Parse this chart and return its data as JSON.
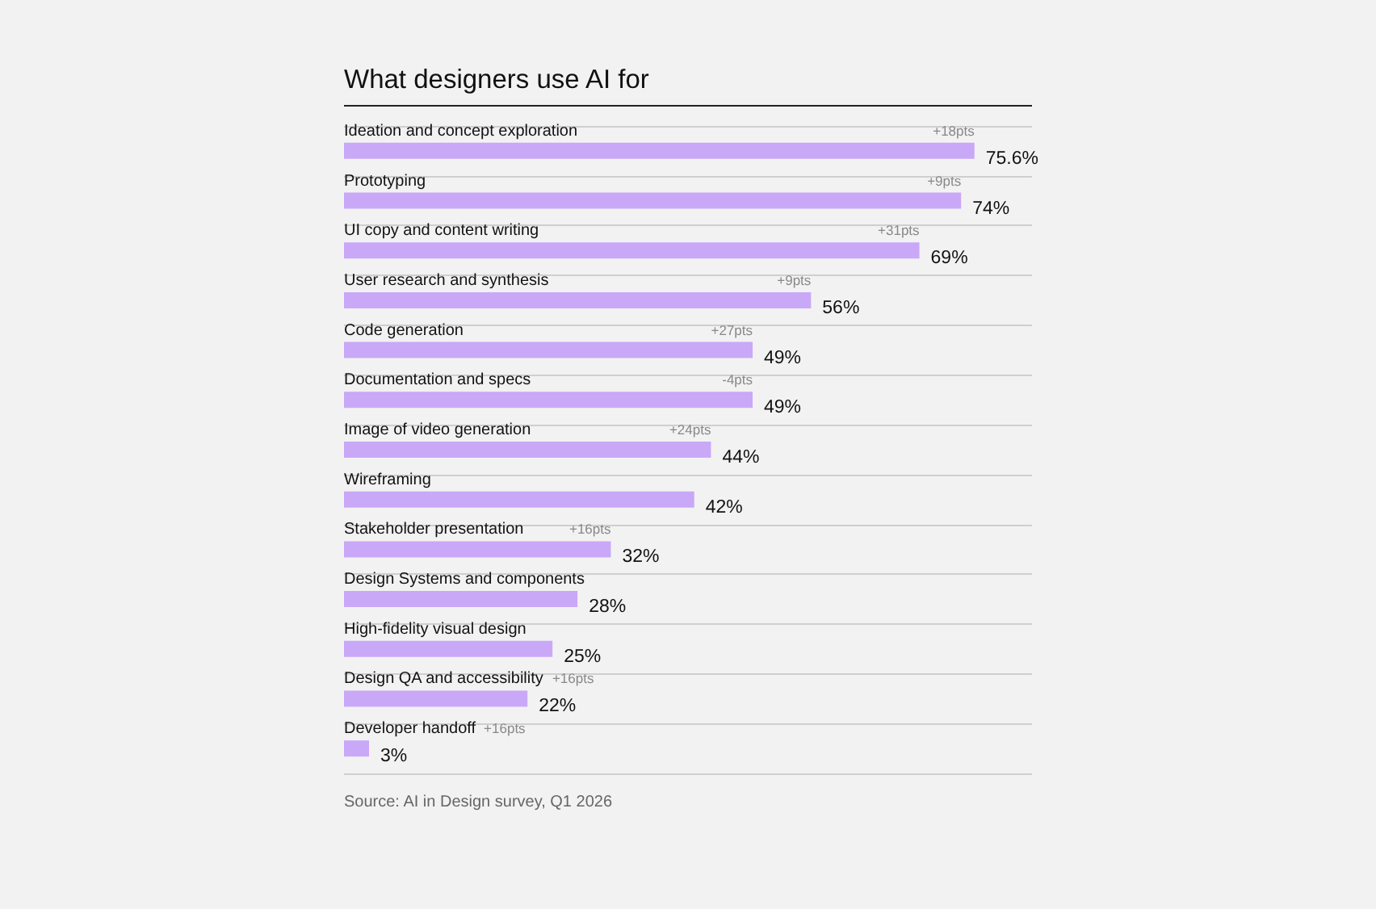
{
  "chart_data": {
    "type": "bar",
    "orientation": "horizontal",
    "title": "What designers use AI for",
    "categories": [
      "Ideation and concept exploration",
      "Prototyping",
      "UI copy and content writing",
      "User research and synthesis",
      "Code generation",
      "Documentation and specs",
      "Image of video generation",
      "Wireframing",
      "Stakeholder presentation",
      "Design Systems and components",
      "High-fidelity visual design",
      "Design QA and accessibility",
      "Developer handoff"
    ],
    "values": [
      75.6,
      74,
      69,
      56,
      49,
      49,
      44,
      42,
      32,
      28,
      25,
      22,
      3
    ],
    "value_labels": [
      "75.6%",
      "74%",
      "69%",
      "56%",
      "49%",
      "49%",
      "44%",
      "42%",
      "32%",
      "28%",
      "25%",
      "22%",
      "3%"
    ],
    "color": "#c9a8f8",
    "xlim": [
      0,
      82.5
    ],
    "tick_labels": "y",
    "grid": "y",
    "annotations": [
      {
        "text": "+18pts",
        "x": 75.6,
        "y": "Ideation and concept exploration"
      },
      {
        "text": "+9pts",
        "x": 74,
        "y": "Prototyping"
      },
      {
        "text": "+31pts",
        "x": 69,
        "y": "UI copy and content writing"
      },
      {
        "text": "+9pts",
        "x": 56,
        "y": "User research and synthesis"
      },
      {
        "text": "+27pts",
        "x": 49,
        "y": "Code generation"
      },
      {
        "text": "-4pts",
        "x": 49,
        "y": "Documentation and specs"
      },
      {
        "text": "+24pts",
        "x": 44,
        "y": "Image of video generation"
      },
      {
        "text": "+16pts",
        "x": 32,
        "y": "Stakeholder presentation"
      },
      {
        "text": "+16pts",
        "x": 22,
        "y": "Design QA and accessibility"
      },
      "+16pts",
      "Source: AI in Design survey, Q1 2026"
    ]
  }
}
